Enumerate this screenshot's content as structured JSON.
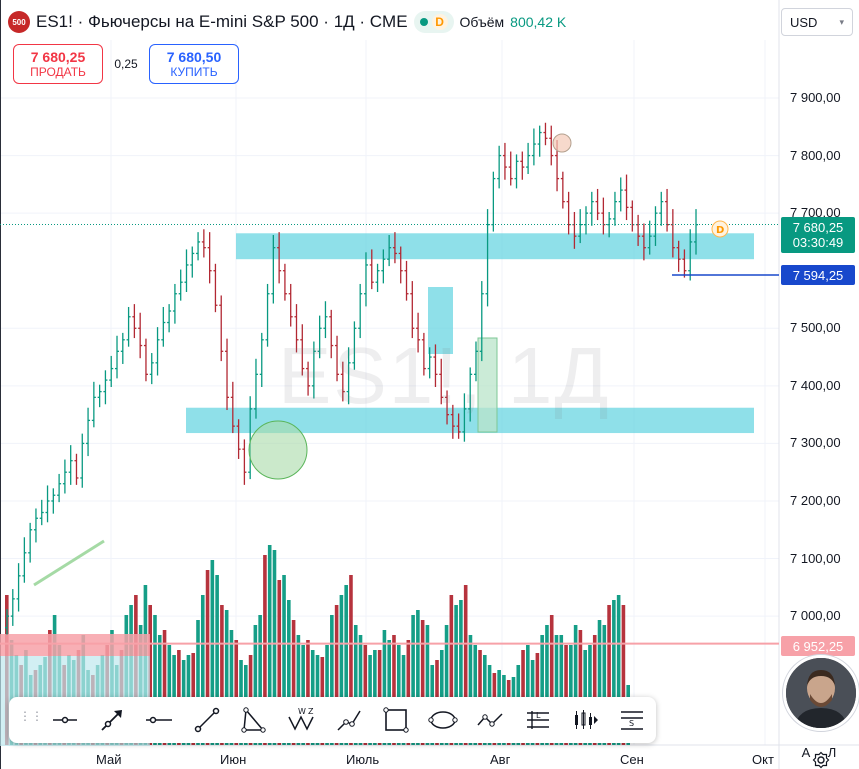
{
  "header": {
    "logo_text": "500",
    "title": "ES1! · Фьючерсы на E-mini S&P 500 · 1Д · CME",
    "d_badge": "D",
    "volume_label": "Объём",
    "volume_value": "800,42 K"
  },
  "trade": {
    "sell_price": "7 680,25",
    "sell_label": "ПРОДАТЬ",
    "spread": "0,25",
    "buy_price": "7 680,50",
    "buy_label": "КУПИТЬ"
  },
  "currency": {
    "label": "USD"
  },
  "watermark": "ES1!, 1Д",
  "chart_data": {
    "type": "candlestick",
    "title": "ES1! · Фьючерсы на E-mini S&P 500 · 1Д · CME",
    "ylim": [
      6920,
      7940
    ],
    "y_ticks": [
      "7 900,00",
      "7 800,00",
      "7 700,00",
      "7 500,00",
      "7 400,00",
      "7 300,00",
      "7 200,00",
      "7 100,00",
      "7 000,00"
    ],
    "y_tick_values": [
      7900,
      7800,
      7700,
      7500,
      7400,
      7300,
      7200,
      7100,
      7000
    ],
    "x_ticks": [
      "Май",
      "Июн",
      "Июль",
      "Авг",
      "Сен",
      "Окт"
    ],
    "last_price": "7 680,25",
    "countdown": "03:30:49",
    "line_level": "7 594,25",
    "red_level": "6 952,25",
    "zones": [
      {
        "from": 7620,
        "to": 7665
      },
      {
        "from": 7318,
        "to": 7362
      }
    ],
    "colors": {
      "up": "#089981",
      "down": "#b22833",
      "zone": "#5fd3e0",
      "volume_up": "#089981",
      "volume_down": "#b22833"
    }
  },
  "toolbar": {
    "tools": [
      "horizontal-ray",
      "arrow-line",
      "horizontal-line",
      "trend-line",
      "triangle",
      "abcd-pattern",
      "path",
      "rectangle",
      "ellipse",
      "polyline",
      "long-position",
      "bar-pattern",
      "fib-retracement"
    ]
  },
  "bottom_buttons": {
    "auto": "A",
    "log": "Л"
  }
}
